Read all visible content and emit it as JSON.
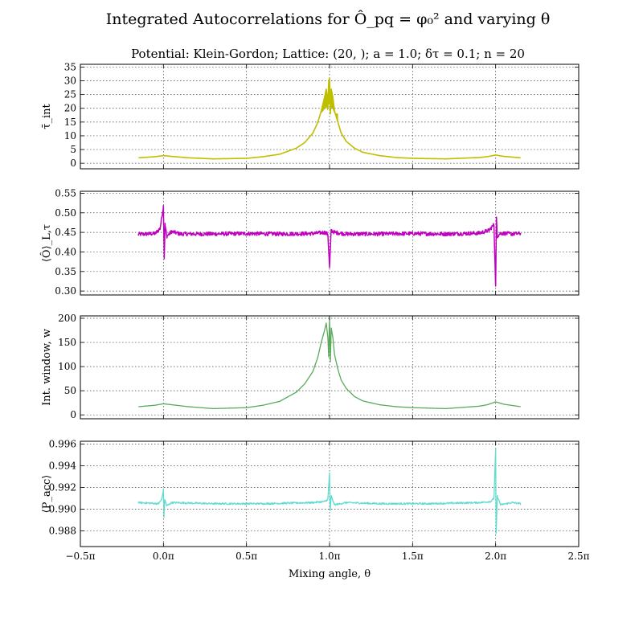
{
  "figure": {
    "title": "Integrated Autocorrelations for Ô_pq = φ₀² and varying θ",
    "subtitle": "Potential: Klein-Gordon; Lattice: (20, ); a = 1.0; δτ = 0.1; n = 20"
  },
  "chart_data": [
    {
      "type": "line",
      "ylabel": "τ̄_int",
      "ylim": [
        -2,
        36
      ],
      "yticks": [
        0,
        5,
        10,
        15,
        20,
        25,
        30,
        35
      ],
      "ytick_labels": [
        "0",
        "5",
        "10",
        "15",
        "20",
        "25",
        "30",
        "35"
      ],
      "xlim": [
        -0.5,
        2.5
      ],
      "grid": true,
      "series": [
        {
          "color": "#bfbf00",
          "line_width": 1.6,
          "noise": 0,
          "x": [
            -0.15,
            -0.05,
            0.0,
            0.05,
            0.15,
            0.3,
            0.5,
            0.6,
            0.7,
            0.8,
            0.85,
            0.9,
            0.93,
            0.95,
            0.97,
            0.98,
            0.99,
            0.995,
            1.0,
            1.005,
            1.01,
            1.02,
            1.03,
            1.05,
            1.07,
            1.1,
            1.15,
            1.2,
            1.3,
            1.4,
            1.5,
            1.7,
            1.9,
            1.95,
            2.0,
            2.05,
            2.15
          ],
          "y": [
            2.0,
            2.4,
            2.8,
            2.5,
            2.0,
            1.6,
            1.8,
            2.4,
            3.3,
            5.5,
            7.5,
            11.0,
            15.0,
            19.0,
            24.0,
            27.0,
            22.0,
            29.5,
            31.0,
            18.0,
            27.0,
            24.0,
            19.0,
            15.0,
            11.0,
            8.0,
            5.5,
            4.0,
            2.8,
            2.1,
            1.8,
            1.6,
            2.1,
            2.4,
            3.0,
            2.5,
            2.0
          ]
        }
      ],
      "peak_band": {
        "center": 1.0,
        "half_width": 0.05,
        "low": 18.0,
        "high": 31.0
      }
    },
    {
      "type": "line",
      "ylabel": "⟨Ô⟩_L,τ",
      "ylim": [
        0.29,
        0.555
      ],
      "yticks": [
        0.3,
        0.35,
        0.4,
        0.45,
        0.5,
        0.55
      ],
      "ytick_labels": [
        "0.30",
        "0.35",
        "0.40",
        "0.45",
        "0.50",
        "0.55"
      ],
      "xlim": [
        -0.5,
        2.5
      ],
      "grid": true,
      "series": [
        {
          "color": "#bf00bf",
          "line_width": 1.5,
          "noise": 0.005,
          "x": [
            -0.15,
            -0.05,
            -0.02,
            0.0,
            0.005,
            0.01,
            0.02,
            0.05,
            0.1,
            0.3,
            0.5,
            0.7,
            0.9,
            0.97,
            0.99,
            1.0,
            1.01,
            1.03,
            1.1,
            1.3,
            1.5,
            1.7,
            1.9,
            1.96,
            1.99,
            2.0,
            2.005,
            2.01,
            2.03,
            2.1,
            2.15
          ],
          "y": [
            0.445,
            0.447,
            0.46,
            0.517,
            0.385,
            0.47,
            0.44,
            0.452,
            0.446,
            0.446,
            0.447,
            0.446,
            0.447,
            0.45,
            0.445,
            0.36,
            0.455,
            0.45,
            0.446,
            0.446,
            0.447,
            0.446,
            0.448,
            0.455,
            0.47,
            0.31,
            0.488,
            0.44,
            0.448,
            0.446,
            0.447
          ]
        }
      ]
    },
    {
      "type": "line",
      "ylabel": "Int. window, w",
      "ylim": [
        -8,
        205
      ],
      "yticks": [
        0,
        50,
        100,
        150,
        200
      ],
      "ytick_labels": [
        "0",
        "50",
        "100",
        "150",
        "200"
      ],
      "xlim": [
        -0.5,
        2.5
      ],
      "grid": true,
      "series": [
        {
          "color": "#5aaa5a",
          "line_width": 1.3,
          "noise": 0,
          "x": [
            -0.15,
            -0.05,
            0.0,
            0.05,
            0.15,
            0.3,
            0.5,
            0.6,
            0.7,
            0.8,
            0.85,
            0.9,
            0.93,
            0.95,
            0.97,
            0.98,
            0.99,
            0.995,
            1.0,
            1.005,
            1.01,
            1.02,
            1.03,
            1.05,
            1.07,
            1.1,
            1.15,
            1.2,
            1.3,
            1.4,
            1.5,
            1.7,
            1.9,
            1.95,
            2.0,
            2.05,
            2.15
          ],
          "y": [
            17,
            20,
            23,
            21,
            17,
            13,
            15,
            20,
            28,
            47,
            64,
            90,
            120,
            150,
            175,
            190,
            160,
            120,
            200,
            110,
            180,
            160,
            125,
            95,
            72,
            55,
            38,
            29,
            21,
            17,
            15,
            13,
            18,
            21,
            27,
            22,
            17
          ]
        }
      ]
    },
    {
      "type": "line",
      "ylabel": "⟨P_acc⟩",
      "ylim": [
        0.98655,
        0.99625
      ],
      "yticks": [
        0.988,
        0.99,
        0.992,
        0.994,
        0.996
      ],
      "ytick_labels": [
        "0.988",
        "0.990",
        "0.992",
        "0.994",
        "0.996"
      ],
      "xlim": [
        -0.5,
        2.5
      ],
      "xticks": [
        -0.5,
        0.0,
        0.5,
        1.0,
        1.5,
        2.0,
        2.5
      ],
      "xtick_labels": [
        "−0.5π",
        "0.0π",
        "0.5π",
        "1.0π",
        "1.5π",
        "2.0π",
        "2.5π"
      ],
      "xlabel": "Mixing angle, θ",
      "grid": true,
      "series": [
        {
          "color": "#60dcd0",
          "line_width": 1.3,
          "noise": 8e-05,
          "x": [
            -0.15,
            -0.03,
            -0.01,
            0.0,
            0.003,
            0.008,
            0.02,
            0.05,
            0.3,
            0.6,
            0.9,
            0.97,
            0.99,
            1.0,
            1.004,
            1.01,
            1.03,
            1.1,
            1.3,
            1.6,
            1.9,
            1.97,
            1.99,
            2.0,
            2.003,
            2.01,
            2.03,
            2.1,
            2.15
          ],
          "y": [
            0.9906,
            0.9905,
            0.9909,
            0.9918,
            0.9893,
            0.9909,
            0.9903,
            0.9906,
            0.9905,
            0.9905,
            0.9906,
            0.9907,
            0.9909,
            0.99335,
            0.9898,
            0.9912,
            0.9904,
            0.9906,
            0.9905,
            0.9905,
            0.9906,
            0.9907,
            0.991,
            0.99555,
            0.9877,
            0.9912,
            0.9904,
            0.9906,
            0.9905
          ]
        }
      ]
    }
  ]
}
